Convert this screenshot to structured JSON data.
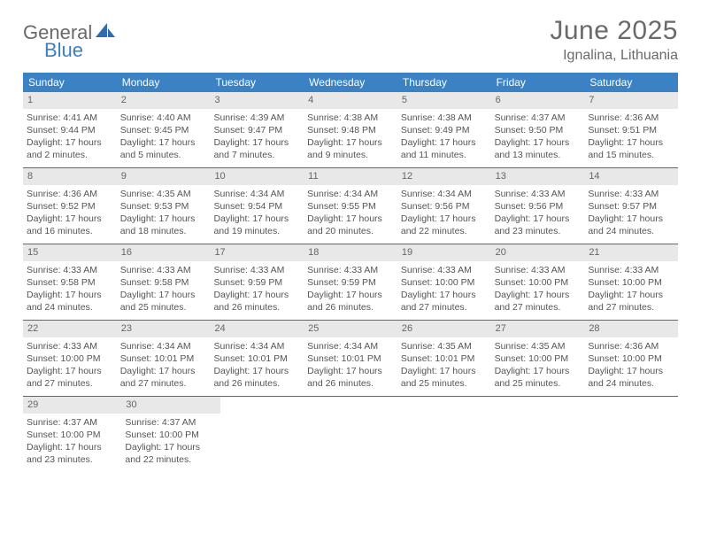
{
  "logo": {
    "text_general": "General",
    "text_blue": "Blue"
  },
  "header": {
    "month_title": "June 2025",
    "location": "Ignalina, Lithuania"
  },
  "colors": {
    "header_bar": "#3b82c4",
    "week_divider": "#3b6fa8",
    "daynum_bg": "#e8e8e8",
    "text": "#555555",
    "title_text": "#6a6a6a",
    "logo_blue": "#3b7fc4"
  },
  "weekdays": [
    "Sunday",
    "Monday",
    "Tuesday",
    "Wednesday",
    "Thursday",
    "Friday",
    "Saturday"
  ],
  "weeks": [
    [
      {
        "n": "1",
        "sr": "4:41 AM",
        "ss": "9:44 PM",
        "dl": "17 hours and 2 minutes."
      },
      {
        "n": "2",
        "sr": "4:40 AM",
        "ss": "9:45 PM",
        "dl": "17 hours and 5 minutes."
      },
      {
        "n": "3",
        "sr": "4:39 AM",
        "ss": "9:47 PM",
        "dl": "17 hours and 7 minutes."
      },
      {
        "n": "4",
        "sr": "4:38 AM",
        "ss": "9:48 PM",
        "dl": "17 hours and 9 minutes."
      },
      {
        "n": "5",
        "sr": "4:38 AM",
        "ss": "9:49 PM",
        "dl": "17 hours and 11 minutes."
      },
      {
        "n": "6",
        "sr": "4:37 AM",
        "ss": "9:50 PM",
        "dl": "17 hours and 13 minutes."
      },
      {
        "n": "7",
        "sr": "4:36 AM",
        "ss": "9:51 PM",
        "dl": "17 hours and 15 minutes."
      }
    ],
    [
      {
        "n": "8",
        "sr": "4:36 AM",
        "ss": "9:52 PM",
        "dl": "17 hours and 16 minutes."
      },
      {
        "n": "9",
        "sr": "4:35 AM",
        "ss": "9:53 PM",
        "dl": "17 hours and 18 minutes."
      },
      {
        "n": "10",
        "sr": "4:34 AM",
        "ss": "9:54 PM",
        "dl": "17 hours and 19 minutes."
      },
      {
        "n": "11",
        "sr": "4:34 AM",
        "ss": "9:55 PM",
        "dl": "17 hours and 20 minutes."
      },
      {
        "n": "12",
        "sr": "4:34 AM",
        "ss": "9:56 PM",
        "dl": "17 hours and 22 minutes."
      },
      {
        "n": "13",
        "sr": "4:33 AM",
        "ss": "9:56 PM",
        "dl": "17 hours and 23 minutes."
      },
      {
        "n": "14",
        "sr": "4:33 AM",
        "ss": "9:57 PM",
        "dl": "17 hours and 24 minutes."
      }
    ],
    [
      {
        "n": "15",
        "sr": "4:33 AM",
        "ss": "9:58 PM",
        "dl": "17 hours and 24 minutes."
      },
      {
        "n": "16",
        "sr": "4:33 AM",
        "ss": "9:58 PM",
        "dl": "17 hours and 25 minutes."
      },
      {
        "n": "17",
        "sr": "4:33 AM",
        "ss": "9:59 PM",
        "dl": "17 hours and 26 minutes."
      },
      {
        "n": "18",
        "sr": "4:33 AM",
        "ss": "9:59 PM",
        "dl": "17 hours and 26 minutes."
      },
      {
        "n": "19",
        "sr": "4:33 AM",
        "ss": "10:00 PM",
        "dl": "17 hours and 27 minutes."
      },
      {
        "n": "20",
        "sr": "4:33 AM",
        "ss": "10:00 PM",
        "dl": "17 hours and 27 minutes."
      },
      {
        "n": "21",
        "sr": "4:33 AM",
        "ss": "10:00 PM",
        "dl": "17 hours and 27 minutes."
      }
    ],
    [
      {
        "n": "22",
        "sr": "4:33 AM",
        "ss": "10:00 PM",
        "dl": "17 hours and 27 minutes."
      },
      {
        "n": "23",
        "sr": "4:34 AM",
        "ss": "10:01 PM",
        "dl": "17 hours and 27 minutes."
      },
      {
        "n": "24",
        "sr": "4:34 AM",
        "ss": "10:01 PM",
        "dl": "17 hours and 26 minutes."
      },
      {
        "n": "25",
        "sr": "4:34 AM",
        "ss": "10:01 PM",
        "dl": "17 hours and 26 minutes."
      },
      {
        "n": "26",
        "sr": "4:35 AM",
        "ss": "10:01 PM",
        "dl": "17 hours and 25 minutes."
      },
      {
        "n": "27",
        "sr": "4:35 AM",
        "ss": "10:00 PM",
        "dl": "17 hours and 25 minutes."
      },
      {
        "n": "28",
        "sr": "4:36 AM",
        "ss": "10:00 PM",
        "dl": "17 hours and 24 minutes."
      }
    ],
    [
      {
        "n": "29",
        "sr": "4:37 AM",
        "ss": "10:00 PM",
        "dl": "17 hours and 23 minutes."
      },
      {
        "n": "30",
        "sr": "4:37 AM",
        "ss": "10:00 PM",
        "dl": "17 hours and 22 minutes."
      },
      null,
      null,
      null,
      null,
      null
    ]
  ],
  "labels": {
    "sunrise_prefix": "Sunrise: ",
    "sunset_prefix": "Sunset: ",
    "daylight_prefix": "Daylight: "
  }
}
